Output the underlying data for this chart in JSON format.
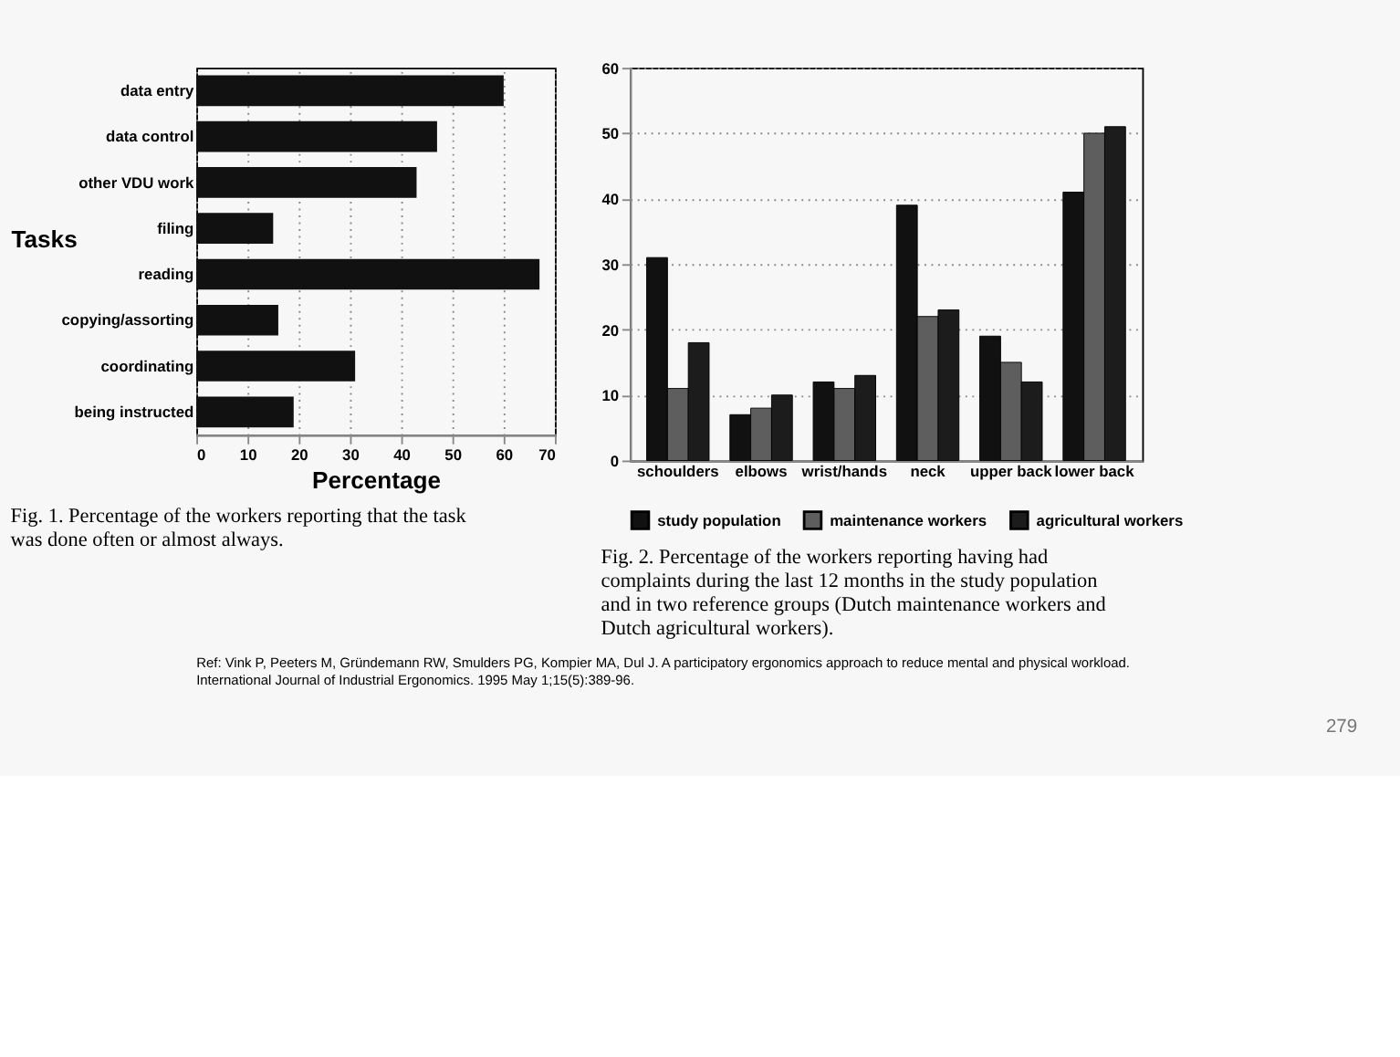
{
  "chart_data": [
    {
      "type": "bar",
      "orientation": "horizontal",
      "title": "Fig. 1. Percentage of the workers reporting that the task was done often or almost always.",
      "xlabel": "Percentage",
      "ylabel": "Tasks",
      "categories": [
        "data entry",
        "data control",
        "other VDU work",
        "filing",
        "reading",
        "copying/assorting",
        "coordinating",
        "being instructed"
      ],
      "values": [
        60,
        47,
        43,
        15,
        67,
        16,
        31,
        19
      ],
      "color": "#111111",
      "xlim": [
        0,
        70
      ],
      "xticks": [
        0,
        10,
        20,
        30,
        40,
        50,
        60,
        70
      ],
      "grid": "x",
      "annotations": [
        "Ref: Vink P, Peeters M, Gründemann RW, Smulders PG, Kompier MA, Dul J. A participatory ergonomics approach to reduce mental and physical workload. International Journal of Industrial Ergonomics. 1995 May 1;15(5):389-96.",
        "279"
      ]
    },
    {
      "type": "bar",
      "title": "Fig. 2. Percentage of the workers reporting having had complaints during the last 12 months in the study population and in two reference groups (Dutch maintenance workers and Dutch agricultural workers).",
      "categories": [
        "schoulders",
        "elbows",
        "wrist/hands",
        "neck",
        "upper back",
        "lower back"
      ],
      "series": [
        {
          "name": "study population",
          "color": "#111111",
          "values": [
            31,
            7,
            12,
            39,
            19,
            41
          ]
        },
        {
          "name": "maintenance workers",
          "color": "#5e5e5e",
          "values": [
            11,
            8,
            11,
            22,
            15,
            50
          ]
        },
        {
          "name": "agricultural workers",
          "color": "#1c1c1c",
          "values": [
            18,
            10,
            13,
            23,
            12,
            51
          ]
        }
      ],
      "ylim": [
        0,
        60
      ],
      "yticks": [
        0,
        10,
        20,
        30,
        40,
        50,
        60
      ],
      "grid": "y",
      "legend": "bottom"
    }
  ]
}
